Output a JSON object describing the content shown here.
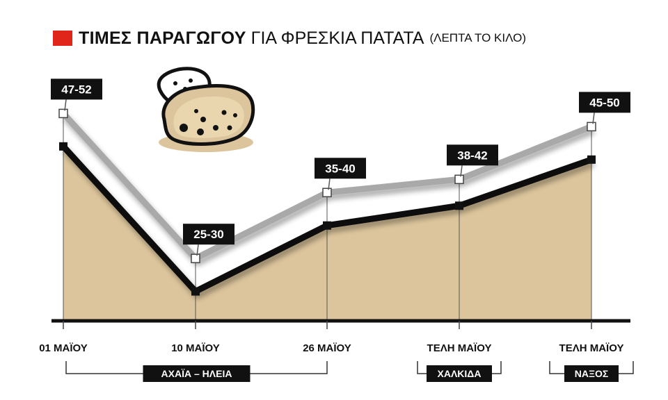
{
  "title": {
    "bold": "ΤΙΜΕΣ ΠΑΡΑΓΩΓΟΥ",
    "regular": "ΓΙΑ ΦΡΕΣΚΙΑ ΠΑΤΑΤΑ",
    "unit": "(ΛΕΠΤΑ ΤΟ ΚΙΛΟ)"
  },
  "colors": {
    "accent": "#e0251b",
    "area": "#dcc59c",
    "low_line": "#111111",
    "high_line": "#a9a9a9",
    "label_bg": "#111111"
  },
  "chart_data": {
    "type": "area",
    "categories": [
      "01 ΜΑΪΟΥ",
      "10 ΜΑΪΟΥ",
      "26 ΜΑΪΟΥ",
      "ΤΕΛΗ ΜΑΪΟΥ",
      "ΤΕΛΗ ΜΑΪΟΥ"
    ],
    "series": [
      {
        "values": [
          47,
          25,
          35,
          38,
          45
        ]
      },
      {
        "values": [
          52,
          30,
          40,
          42,
          50
        ]
      }
    ],
    "data_labels": [
      "47-52",
      "25-30",
      "35-40",
      "38-42",
      "45-50"
    ],
    "ylim": [
      10,
      65
    ],
    "grid": false,
    "groups": [
      {
        "label": "ΑΧΑΪΑ – ΗΛΕΙΑ",
        "from": 0,
        "to": 2
      },
      {
        "label": "ΧΑΛΚΙΔΑ",
        "from": 3,
        "to": 3
      },
      {
        "label": "ΝΑΞΟΣ",
        "from": 4,
        "to": 4
      }
    ]
  },
  "icon": "potato-icon"
}
